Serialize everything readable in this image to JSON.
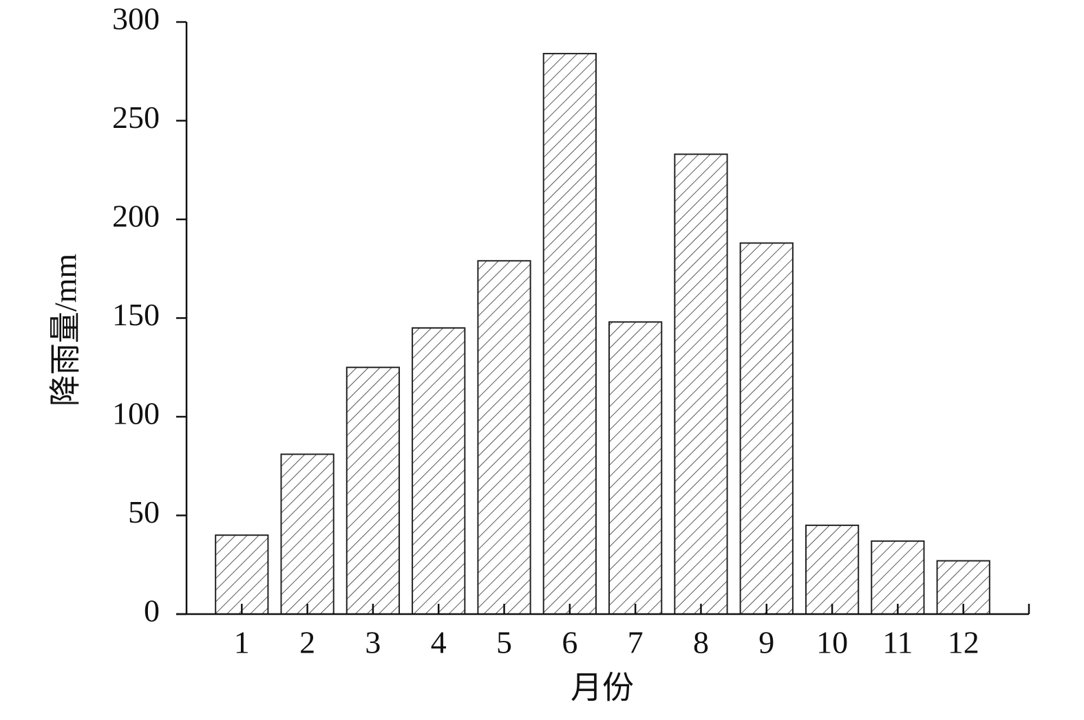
{
  "chart_data": {
    "type": "bar",
    "x_label": "月份",
    "y_label": "降雨量/mm",
    "categories": [
      "1",
      "2",
      "3",
      "4",
      "5",
      "6",
      "7",
      "8",
      "9",
      "10",
      "11",
      "12"
    ],
    "values": [
      40,
      81,
      125,
      145,
      179,
      284,
      148,
      233,
      188,
      45,
      37,
      27
    ],
    "color": "#222222",
    "ylim": [
      0,
      300
    ],
    "yticks": [
      0,
      50,
      100,
      150,
      200,
      250,
      300
    ],
    "grid": false
  }
}
